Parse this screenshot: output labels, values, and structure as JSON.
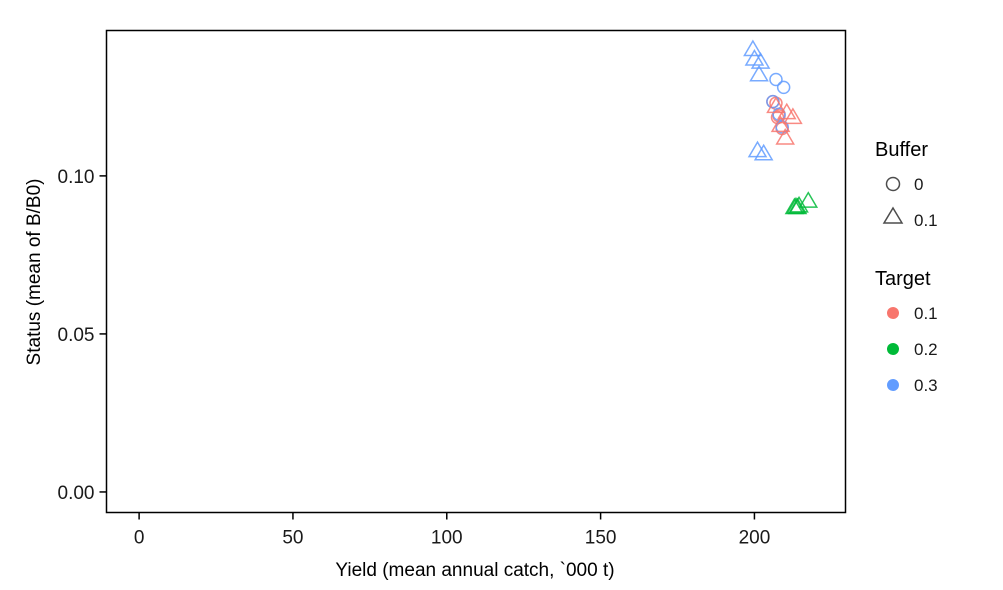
{
  "chart_data": {
    "type": "scatter",
    "xlabel": "Yield (mean annual catch, `000 t)",
    "ylabel": "Status (mean of B/B0)",
    "xlim": [
      -10.6,
      229.6
    ],
    "ylim": [
      -0.0065,
      0.146
    ],
    "x_ticks": [
      0,
      50,
      100,
      150,
      200
    ],
    "x_tick_labels": [
      "0",
      "50",
      "100",
      "150",
      "200"
    ],
    "y_ticks": [
      0.0,
      0.05,
      0.1
    ],
    "y_tick_labels": [
      "0.00",
      "0.05",
      "0.10"
    ],
    "grid": false,
    "legend_placement": "right",
    "legends": {
      "buffer": {
        "title": "Buffer",
        "entries": [
          {
            "label": "0",
            "shape": "circle"
          },
          {
            "label": "0.1",
            "shape": "triangle"
          }
        ]
      },
      "target": {
        "title": "Target",
        "entries": [
          {
            "label": "0.1",
            "color": "#F8766D"
          },
          {
            "label": "0.2",
            "color": "#00BA38"
          },
          {
            "label": "0.3",
            "color": "#619CFF"
          }
        ]
      }
    },
    "colors": {
      "0.1": "#F8766D",
      "0.2": "#00BA38",
      "0.3": "#619CFF"
    },
    "points": [
      {
        "x": 206.0,
        "y": 0.1235,
        "buffer": "0",
        "target": "0.1"
      },
      {
        "x": 207.0,
        "y": 0.123,
        "buffer": "0",
        "target": "0.1"
      },
      {
        "x": 208.0,
        "y": 0.119,
        "buffer": "0",
        "target": "0.1"
      },
      {
        "x": 209.0,
        "y": 0.115,
        "buffer": "0",
        "target": "0.1"
      },
      {
        "x": 207.5,
        "y": 0.1185,
        "buffer": "0",
        "target": "0.1"
      },
      {
        "x": 206.0,
        "y": 0.1235,
        "buffer": "0",
        "target": "0.3"
      },
      {
        "x": 207.0,
        "y": 0.1305,
        "buffer": "0",
        "target": "0.3"
      },
      {
        "x": 209.5,
        "y": 0.128,
        "buffer": "0",
        "target": "0.3"
      },
      {
        "x": 208.0,
        "y": 0.1195,
        "buffer": "0",
        "target": "0.3"
      },
      {
        "x": 209.0,
        "y": 0.1155,
        "buffer": "0",
        "target": "0.3"
      },
      {
        "x": 207.0,
        "y": 0.122,
        "buffer": "0.1",
        "target": "0.1"
      },
      {
        "x": 210.5,
        "y": 0.12,
        "buffer": "0.1",
        "target": "0.1"
      },
      {
        "x": 212.5,
        "y": 0.1185,
        "buffer": "0.1",
        "target": "0.1"
      },
      {
        "x": 208.5,
        "y": 0.116,
        "buffer": "0.1",
        "target": "0.1"
      },
      {
        "x": 210.0,
        "y": 0.112,
        "buffer": "0.1",
        "target": "0.1"
      },
      {
        "x": 213.0,
        "y": 0.09,
        "buffer": "0.1",
        "target": "0.2"
      },
      {
        "x": 214.0,
        "y": 0.09,
        "buffer": "0.1",
        "target": "0.2"
      },
      {
        "x": 213.5,
        "y": 0.0902,
        "buffer": "0.1",
        "target": "0.2"
      },
      {
        "x": 214.5,
        "y": 0.0905,
        "buffer": "0.1",
        "target": "0.2"
      },
      {
        "x": 217.5,
        "y": 0.092,
        "buffer": "0.1",
        "target": "0.2"
      },
      {
        "x": 199.5,
        "y": 0.14,
        "buffer": "0.1",
        "target": "0.3"
      },
      {
        "x": 200.0,
        "y": 0.137,
        "buffer": "0.1",
        "target": "0.3"
      },
      {
        "x": 202.0,
        "y": 0.136,
        "buffer": "0.1",
        "target": "0.3"
      },
      {
        "x": 201.5,
        "y": 0.132,
        "buffer": "0.1",
        "target": "0.3"
      },
      {
        "x": 201.0,
        "y": 0.108,
        "buffer": "0.1",
        "target": "0.3"
      },
      {
        "x": 203.0,
        "y": 0.107,
        "buffer": "0.1",
        "target": "0.3"
      }
    ]
  }
}
